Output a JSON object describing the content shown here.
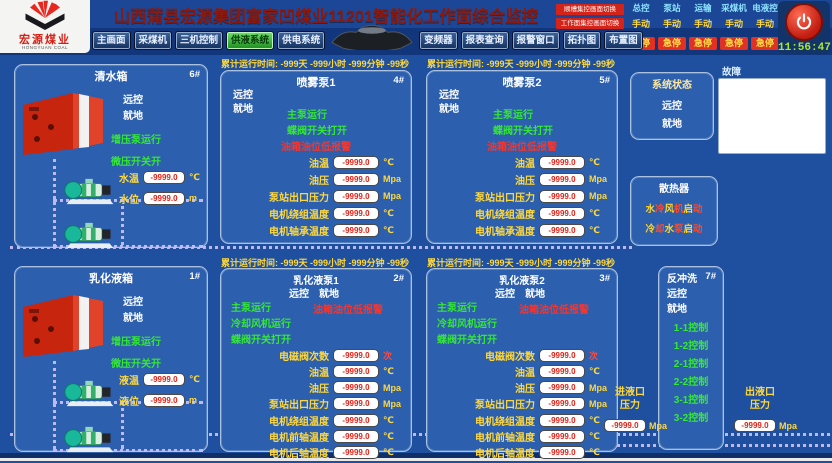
{
  "app": {
    "background": "#1e509f",
    "accent_green": "#35e835",
    "accent_yellow": "#ffd83c",
    "alarm_red": "#ff3326",
    "badge_red": "#d42318"
  },
  "header": {
    "logo": {
      "title": "宏源煤业",
      "subtitle": "HONGYUAN COAL"
    },
    "title": "山西蒲县宏源集团富家凹煤业11201智能化工作面综合监控",
    "badges": [
      "顺槽集控画面切换",
      "工作面集控画面切换"
    ],
    "control_groups": [
      {
        "label": "总控",
        "mode": "手动",
        "stop": "急停"
      },
      {
        "label": "泵站",
        "mode": "手动",
        "stop": "急停"
      },
      {
        "label": "运输",
        "mode": "手动",
        "stop": "急停"
      },
      {
        "label": "采煤机",
        "mode": "手动",
        "stop": "急停"
      },
      {
        "label": "电液控",
        "mode": "手动",
        "stop": "急停"
      }
    ],
    "clock": "11:56:47"
  },
  "nav": {
    "tabs_left": [
      {
        "label": "主画面",
        "active": false
      },
      {
        "label": "采煤机",
        "active": false
      },
      {
        "label": "三机控制",
        "active": false
      },
      {
        "label": "供液系统",
        "active": true
      },
      {
        "label": "供电系统",
        "active": false
      }
    ],
    "tabs_right": [
      {
        "label": "变频器",
        "active": false
      },
      {
        "label": "报表查询",
        "active": false
      },
      {
        "label": "报警窗口",
        "active": false
      },
      {
        "label": "拓扑图",
        "active": false
      },
      {
        "label": "布置图",
        "active": false
      }
    ]
  },
  "tanks": [
    {
      "title": "清水箱",
      "number": "6#",
      "remote": "远控",
      "local": "就地",
      "status": [
        "增压泵运行",
        "微压开关开"
      ],
      "metrics": [
        {
          "label": "水温",
          "value": "-9999.0",
          "unit": "℃",
          "unit_color": "#ffd83c"
        },
        {
          "label": "水位",
          "value": "-9999.0",
          "unit": "m",
          "unit_color": "#ffd83c"
        }
      ]
    },
    {
      "title": "乳化液箱",
      "number": "1#",
      "remote": "远控",
      "local": "就地",
      "status": [
        "增压泵运行",
        "微压开关开"
      ],
      "metrics": [
        {
          "label": "液温",
          "value": "-9999.0",
          "unit": "℃",
          "unit_color": "#ffd83c"
        },
        {
          "label": "液位",
          "value": "-9999.0",
          "unit": "m",
          "unit_color": "#ffd83c"
        }
      ]
    }
  ],
  "pumps": [
    {
      "title": "喷雾泵1",
      "number": "4#",
      "runtime": "累计运行时间: -999天 -999小时 -999分钟 -99秒",
      "remote": "远控",
      "local": "就地",
      "status": [
        "主泵运行",
        "蝶阀开关打开"
      ],
      "alarm": "油箱油位低报警",
      "metrics": [
        {
          "label": "油温",
          "value": "-9999.0",
          "unit": "℃",
          "unit_color": "#ffd83c"
        },
        {
          "label": "油压",
          "value": "-9999.0",
          "unit": "Mpa",
          "unit_color": "#ffd83c"
        },
        {
          "label": "泵站出口压力",
          "value": "-9999.0",
          "unit": "Mpa",
          "unit_color": "#ffd83c"
        },
        {
          "label": "电机绕组温度",
          "value": "-9999.0",
          "unit": "℃",
          "unit_color": "#ffd83c"
        },
        {
          "label": "电机轴承温度",
          "value": "-9999.0",
          "unit": "℃",
          "unit_color": "#ffd83c"
        }
      ]
    },
    {
      "title": "喷雾泵2",
      "number": "5#",
      "runtime": "累计运行时间: -999天 -999小时 -999分钟 -99秒",
      "remote": "远控",
      "local": "就地",
      "status": [
        "主泵运行",
        "蝶阀开关打开"
      ],
      "alarm": "油箱油位低报警",
      "metrics": [
        {
          "label": "油温",
          "value": "-9999.0",
          "unit": "℃",
          "unit_color": "#ffd83c"
        },
        {
          "label": "油压",
          "value": "-9999.0",
          "unit": "Mpa",
          "unit_color": "#ffd83c"
        },
        {
          "label": "泵站出口压力",
          "value": "-9999.0",
          "unit": "Mpa",
          "unit_color": "#ffd83c"
        },
        {
          "label": "电机绕组温度",
          "value": "-9999.0",
          "unit": "℃",
          "unit_color": "#ffd83c"
        },
        {
          "label": "电机轴承温度",
          "value": "-9999.0",
          "unit": "℃",
          "unit_color": "#ffd83c"
        }
      ]
    },
    {
      "title": "乳化液泵1",
      "number": "2#",
      "runtime": "累计运行时间: -999天 -999小时 -999分钟 -99秒",
      "remote": "远控",
      "local": "就地",
      "status": [
        "主泵运行",
        "冷却风机运行",
        "蝶阀开关打开"
      ],
      "alarm": "油箱油位低报警",
      "metrics": [
        {
          "label": "电磁阀次数",
          "value": "-9999.0",
          "unit": "次",
          "unit_color": "#ff4a3a"
        },
        {
          "label": "油温",
          "value": "-9999.0",
          "unit": "℃",
          "unit_color": "#ffd83c"
        },
        {
          "label": "油压",
          "value": "-9999.0",
          "unit": "Mpa",
          "unit_color": "#ffd83c"
        },
        {
          "label": "泵站出口压力",
          "value": "-9999.0",
          "unit": "Mpa",
          "unit_color": "#ffd83c"
        },
        {
          "label": "电机绕组温度",
          "value": "-9999.0",
          "unit": "℃",
          "unit_color": "#ffd83c"
        },
        {
          "label": "电机前轴温度",
          "value": "-9999.0",
          "unit": "℃",
          "unit_color": "#ffd83c"
        },
        {
          "label": "电机后轴温度",
          "value": "-9999.0",
          "unit": "℃",
          "unit_color": "#ffd83c"
        }
      ]
    },
    {
      "title": "乳化液泵2",
      "number": "3#",
      "runtime": "累计运行时间: -999天 -999小时 -999分钟 -99秒",
      "remote": "远控",
      "local": "就地",
      "status": [
        "主泵运行",
        "冷却风机运行",
        "蝶阀开关打开"
      ],
      "alarm": "油箱油位低报警",
      "metrics": [
        {
          "label": "电磁阀次数",
          "value": "-9999.0",
          "unit": "次",
          "unit_color": "#ff4a3a"
        },
        {
          "label": "油温",
          "value": "-9999.0",
          "unit": "℃",
          "unit_color": "#ffd83c"
        },
        {
          "label": "油压",
          "value": "-9999.0",
          "unit": "Mpa",
          "unit_color": "#ffd83c"
        },
        {
          "label": "泵站出口压力",
          "value": "-9999.0",
          "unit": "Mpa",
          "unit_color": "#ffd83c"
        },
        {
          "label": "电机绕组温度",
          "value": "-9999.0",
          "unit": "℃",
          "unit_color": "#ffd83c"
        },
        {
          "label": "电机前轴温度",
          "value": "-9999.0",
          "unit": "℃",
          "unit_color": "#ffd83c"
        },
        {
          "label": "电机后轴温度",
          "value": "-9999.0",
          "unit": "℃",
          "unit_color": "#ffd83c"
        }
      ]
    }
  ],
  "right": {
    "system_status": {
      "title": "系统状态",
      "remote": "远控",
      "local": "就地"
    },
    "fault": {
      "label": "故障"
    },
    "radiator": {
      "title": "散热器",
      "lines": [
        "水冷风机启动",
        "冷却水泵启动"
      ]
    },
    "backflush": {
      "title": "反冲洗",
      "number": "7#",
      "remote": "远控",
      "local": "就地",
      "controls": [
        "1-1控制",
        "1-2控制",
        "2-1控制",
        "2-2控制",
        "3-1控制",
        "3-2控制"
      ]
    },
    "inlet": {
      "label_line1": "进液口",
      "label_line2": "压力",
      "value": "-9999.0",
      "unit": "Mpa"
    },
    "outlet": {
      "label_line1": "出液口",
      "label_line2": "压力",
      "value": "-9999.0",
      "unit": "Mpa"
    }
  }
}
